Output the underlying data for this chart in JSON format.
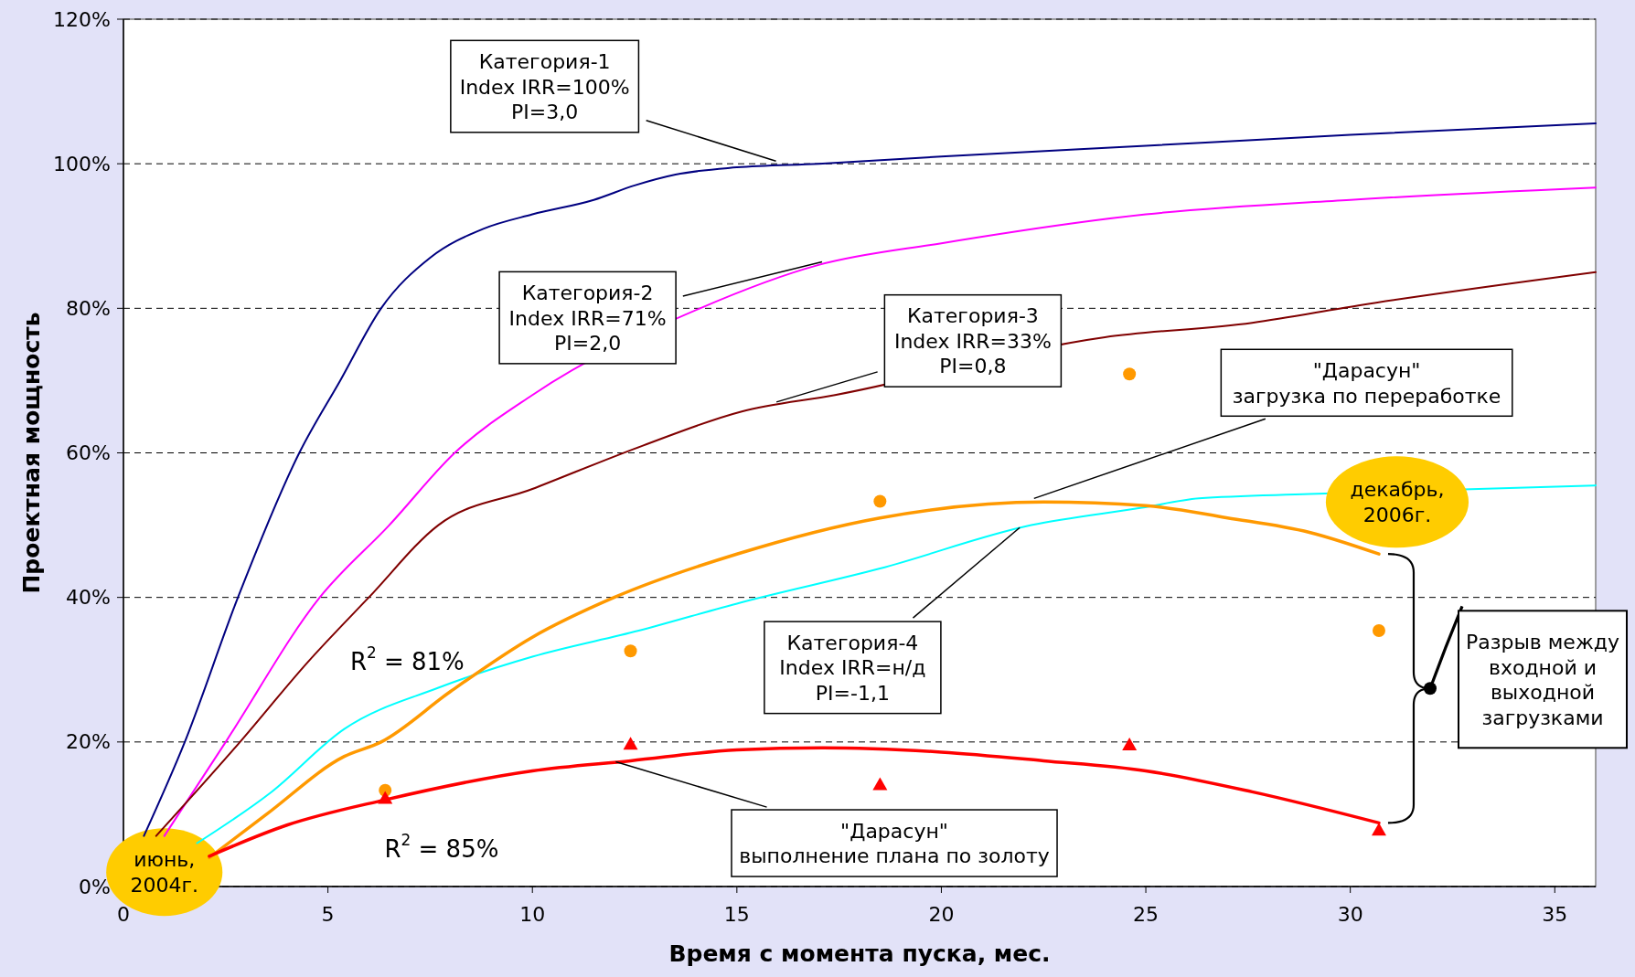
{
  "chart_data": {
    "type": "line",
    "xlabel": "Время с момента пуска, мес.",
    "ylabel": "Проектная мощность",
    "xlim": [
      0,
      36
    ],
    "xticks": [
      0,
      5,
      10,
      15,
      20,
      25,
      30,
      35
    ],
    "ylim": [
      0,
      120
    ],
    "yticks": [
      {
        "value": 0,
        "label": "0%"
      },
      {
        "value": 20,
        "label": "20%"
      },
      {
        "value": 40,
        "label": "40%"
      },
      {
        "value": 60,
        "label": "60%"
      },
      {
        "value": 80,
        "label": "80%"
      },
      {
        "value": 100,
        "label": "100%"
      },
      {
        "value": 120,
        "label": "120%"
      }
    ],
    "grid": "y",
    "series": [
      {
        "name": "Категория-1\nIndex IRR=100%\nPI=3,0",
        "color": "#000080",
        "x": [
          0.5,
          1.5,
          2.8,
          4.3,
          5.3,
          6.3,
          7.5,
          8.8,
          10,
          11.5,
          12.5,
          13.5,
          15,
          17,
          20,
          25,
          30,
          36
        ],
        "values": [
          7,
          20,
          40,
          60,
          70,
          80,
          87,
          91,
          93,
          95,
          97,
          98.5,
          99.5,
          100,
          101,
          102.5,
          104,
          105.6
        ]
      },
      {
        "name": "Категория-2\nIndex IRR=71%\nPI=2,0",
        "color": "#ff00ff",
        "x": [
          1,
          2.5,
          4.8,
          6.5,
          8.1,
          10,
          14.1,
          17,
          20,
          25,
          30,
          36
        ],
        "values": [
          7,
          20,
          40,
          50,
          60,
          68,
          80,
          86,
          89,
          93,
          95,
          96.7
        ]
      },
      {
        "name": "Категория-3\nIndex IRR=33%\nPI=0,8",
        "color": "#800000",
        "x": [
          0.8,
          2.85,
          4.5,
          6,
          7.7,
          10,
          12.7,
          15.1,
          17.4,
          24,
          27.6,
          30.2,
          36
        ],
        "values": [
          7,
          20,
          31,
          40,
          50,
          55,
          61,
          65.7,
          68,
          76,
          78,
          80.4,
          85
        ]
      },
      {
        "name": "Категория-4\nIndex IRR=н/д\nPI=-1,1",
        "color": "#00ffff",
        "x": [
          1.8,
          3.6,
          5.4,
          7.7,
          10,
          12.6,
          15.1,
          18.5,
          22.2,
          24.9,
          26.3,
          29,
          36
        ],
        "values": [
          6,
          13,
          21.8,
          27.5,
          31.8,
          35.4,
          39.3,
          44,
          50,
          52.4,
          53.7,
          54.3,
          55.5
        ]
      },
      {
        "name": "\"Дарасун\"\nзагрузка по переработке",
        "color": "#ff9900",
        "x": [
          2.1,
          3.5,
          5.4,
          6.3,
          8,
          10,
          12,
          15,
          18.5,
          22.5,
          25,
          27,
          29,
          30.7
        ],
        "values": [
          4,
          10,
          18,
          20,
          27,
          34.5,
          40,
          46,
          51,
          53.2,
          52.7,
          51,
          49,
          46
        ]
      },
      {
        "name": "\"Дарасун\"\nвыполнение плана по золоту",
        "color": "#ff0000",
        "x": [
          2.1,
          4,
          6.4,
          10,
          12.4,
          15,
          17.1,
          20,
          22.5,
          25,
          27.6,
          30.7
        ],
        "values": [
          4.2,
          8.5,
          12,
          16,
          17.4,
          18.9,
          19.2,
          18.6,
          17.4,
          16,
          13.1,
          8.8
        ]
      },
      {
        "type": "scatter",
        "marker": "circle",
        "color": "#ff9900",
        "x": [
          6.4,
          12.4,
          18.5,
          24.6,
          30.7
        ],
        "values": [
          13.3,
          32.6,
          53.3,
          70.9,
          35.4
        ]
      },
      {
        "type": "scatter",
        "marker": "triangle",
        "color": "#ff0000",
        "x": [
          6.4,
          12.4,
          18.5,
          24.6,
          30.7
        ],
        "values": [
          12.2,
          19.7,
          14.1,
          19.6,
          7.8
        ]
      }
    ],
    "annotations": [
      "R$^{2}$ = 81%",
      "R$^{2}$ = 85%",
      "июнь,\n2004г.",
      {
        "text": "декабрь,\n2006г.",
        "x": 30.7,
        "y": 46
      },
      "Разрыв между\nвходной и\nвыходной\nзагрузками"
    ]
  }
}
